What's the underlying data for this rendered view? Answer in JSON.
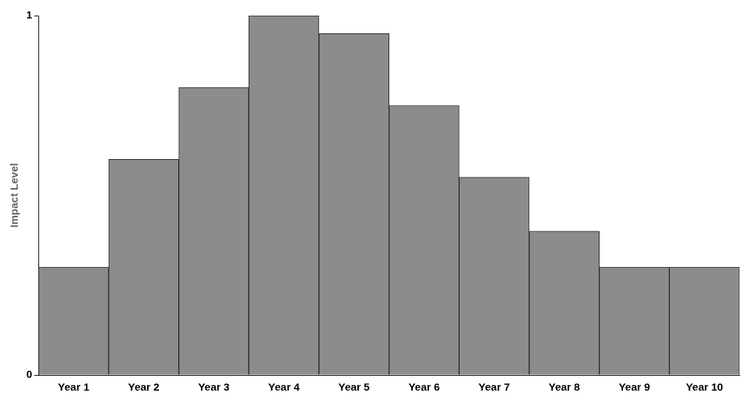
{
  "chart_data": {
    "type": "bar",
    "ylabel": "Impact Level",
    "categories": [
      "Year 1",
      "Year 2",
      "Year 3",
      "Year 4",
      "Year 5",
      "Year 6",
      "Year 7",
      "Year 8",
      "Year 9",
      "Year 10"
    ],
    "values": [
      0.3,
      0.6,
      0.8,
      1.0,
      0.95,
      0.75,
      0.55,
      0.4,
      0.3,
      0.3
    ],
    "color": "#8c8c8c",
    "ylim": [
      0,
      1
    ],
    "yticks": [
      0,
      1
    ],
    "grid": false,
    "legend": false
  }
}
